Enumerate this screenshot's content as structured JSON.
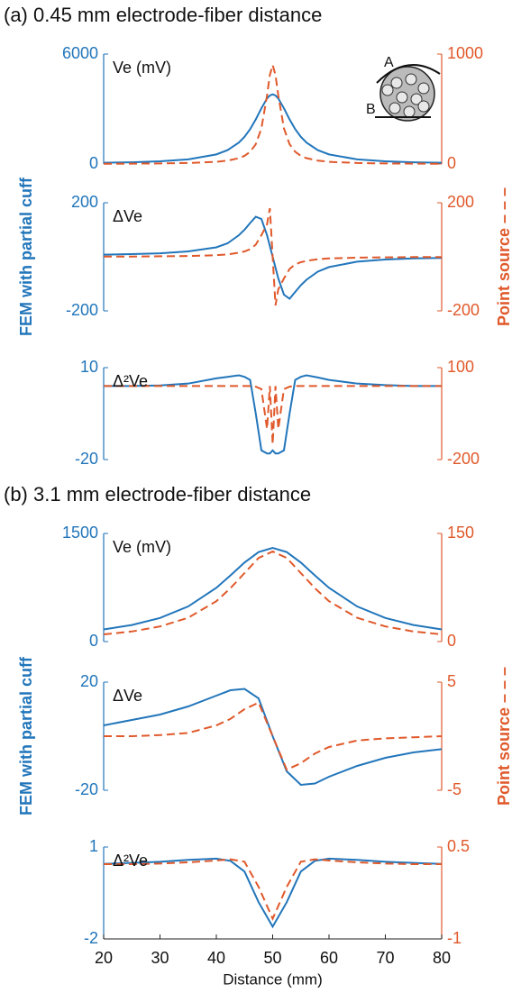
{
  "chart_data": [
    {
      "type": "line",
      "title": "(a) 0.45 mm electrode-fiber distance",
      "annotation": "Ve (mV)",
      "inset_labels": [
        "A",
        "B"
      ],
      "x": [
        20,
        25,
        30,
        35,
        40,
        42,
        44,
        45,
        46,
        47,
        48,
        49,
        49.5,
        50,
        50.5,
        51,
        52,
        53,
        54,
        55,
        56,
        58,
        60,
        65,
        70,
        75,
        80
      ],
      "xlim": [
        20,
        80
      ],
      "ylim": [
        0,
        6000
      ],
      "yticks": [
        0,
        6000
      ],
      "y2lim": [
        0,
        1000
      ],
      "y2ticks": [
        0,
        1000
      ],
      "series": [
        {
          "color": "#2276bb",
          "style": "solid",
          "axis": "y",
          "values": [
            66,
            95,
            146,
            252,
            524,
            760,
            1169,
            1483,
            1900,
            2432,
            3040,
            3576,
            3741,
            3800,
            3741,
            3576,
            3040,
            2432,
            1900,
            1483,
            1169,
            760,
            524,
            252,
            146,
            95,
            66
          ]
        },
        {
          "color": "#e0592b",
          "style": "dashed",
          "axis": "y2",
          "values": [
            2,
            3,
            5,
            9,
            20,
            31,
            53,
            74,
            111,
            180,
            324,
            623,
            810,
            900,
            810,
            623,
            324,
            180,
            111,
            74,
            53,
            31,
            20,
            9,
            5,
            3,
            2
          ]
        }
      ]
    },
    {
      "type": "line",
      "annotation": "ΔVe",
      "ylabel": "FEM with partial cuff",
      "y2label": "Point source – – –",
      "x": [
        20,
        25,
        30,
        35,
        40,
        42,
        44,
        45,
        46,
        47,
        48,
        49,
        49.5,
        50,
        50.5,
        51,
        52,
        53,
        54,
        55,
        56,
        58,
        60,
        65,
        70,
        75,
        80
      ],
      "xlim": [
        20,
        80
      ],
      "ylim": [
        -200,
        200
      ],
      "yticks": [
        -200,
        200
      ],
      "y2lim": [
        -200,
        200
      ],
      "y2ticks": [
        -200,
        200
      ],
      "series": [
        {
          "color": "#2276bb",
          "style": "solid",
          "axis": "y",
          "values": [
            8,
            10,
            13,
            20,
            35,
            50,
            80,
            100,
            125,
            148,
            140,
            80,
            40,
            0,
            -40,
            -80,
            -140,
            -155,
            -130,
            -105,
            -85,
            -55,
            -38,
            -18,
            -10,
            -6,
            -4
          ]
        },
        {
          "color": "#e0592b",
          "style": "dashed",
          "axis": "y2",
          "values": [
            1,
            1,
            2,
            3,
            6,
            9,
            15,
            20,
            28,
            45,
            80,
            120,
            180,
            0,
            -180,
            -120,
            -80,
            -45,
            -28,
            -20,
            -15,
            -9,
            -6,
            -3,
            -2,
            -1,
            -1
          ]
        }
      ]
    },
    {
      "type": "line",
      "annotation": "Δ²Ve",
      "x": [
        20,
        25,
        30,
        35,
        40,
        42,
        44,
        45,
        46,
        47,
        48,
        49,
        49.5,
        50,
        50.5,
        51,
        52,
        53,
        54,
        55,
        56,
        58,
        60,
        65,
        70,
        75,
        80
      ],
      "xlim": [
        20,
        80
      ],
      "ylim": [
        -20,
        10
      ],
      "yticks": [
        -20,
        10
      ],
      "y2lim": [
        -200,
        100
      ],
      "y2ticks": [
        -200,
        100
      ],
      "series": [
        {
          "color": "#2276bb",
          "style": "solid",
          "axis": "y",
          "values": [
            4,
            4,
            4.2,
            4.8,
            6.5,
            7,
            7.5,
            7,
            6,
            -5,
            -17,
            -18,
            -18,
            -17,
            -18,
            -18,
            -17,
            -5,
            6,
            7,
            7.5,
            6.8,
            6,
            4.8,
            4.3,
            4,
            4
          ]
        },
        {
          "color": "#e0592b",
          "style": "dashed",
          "axis": "y2",
          "values": [
            40,
            40,
            40,
            40,
            40,
            40,
            40,
            40,
            40,
            38,
            30,
            -100,
            40,
            -150,
            40,
            -100,
            30,
            38,
            40,
            40,
            40,
            40,
            40,
            40,
            40,
            40,
            40
          ]
        }
      ]
    },
    {
      "type": "line",
      "title": "(b) 3.1 mm electrode-fiber distance",
      "annotation": "Ve (mV)",
      "x": [
        20,
        25,
        30,
        35,
        40,
        42.5,
        45,
        47.5,
        50,
        52.5,
        55,
        57.5,
        60,
        65,
        70,
        75,
        80
      ],
      "xlim": [
        20,
        80
      ],
      "ylim": [
        0,
        1500
      ],
      "yticks": [
        0,
        1500
      ],
      "y2lim": [
        0,
        150
      ],
      "y2ticks": [
        0,
        150
      ],
      "series": [
        {
          "color": "#2276bb",
          "style": "solid",
          "axis": "y",
          "values": [
            169,
            230,
            327,
            487,
            746,
            917,
            1096,
            1242,
            1300,
            1242,
            1096,
            917,
            746,
            487,
            327,
            230,
            169
          ]
        },
        {
          "color": "#e0592b",
          "style": "dashed",
          "axis": "y2",
          "values": [
            10,
            14,
            21,
            33,
            56,
            74,
            95,
            116,
            125,
            116,
            95,
            74,
            56,
            33,
            21,
            14,
            10
          ]
        }
      ]
    },
    {
      "type": "line",
      "annotation": "ΔVe",
      "ylabel": "FEM with partial cuff",
      "y2label": "Point source – – –",
      "x": [
        20,
        25,
        30,
        35,
        40,
        42.5,
        45,
        47.5,
        50,
        52.5,
        55,
        57.5,
        60,
        65,
        70,
        75,
        80
      ],
      "xlim": [
        20,
        80
      ],
      "ylim": [
        -20,
        20
      ],
      "yticks": [
        -20,
        20
      ],
      "y2lim": [
        -5,
        5
      ],
      "y2ticks": [
        -5,
        5
      ],
      "series": [
        {
          "color": "#2276bb",
          "style": "solid",
          "axis": "y",
          "values": [
            4,
            6,
            8,
            11,
            15,
            17,
            17.5,
            14,
            0,
            -13,
            -18,
            -17.5,
            -15,
            -11,
            -8,
            -6,
            -4.8
          ]
        },
        {
          "color": "#e0592b",
          "style": "dashed",
          "axis": "y2",
          "values": [
            0,
            0,
            0.1,
            0.3,
            1,
            1.6,
            2.5,
            3.1,
            0,
            -3.1,
            -2.5,
            -1.6,
            -1,
            -0.4,
            -0.2,
            -0.1,
            0
          ]
        }
      ]
    },
    {
      "type": "line",
      "annotation": "Δ²Ve",
      "xlabel": "Distance (mm)",
      "x": [
        20,
        25,
        30,
        35,
        40,
        42.5,
        45,
        47.5,
        50,
        52.5,
        55,
        57.5,
        60,
        65,
        70,
        75,
        80
      ],
      "xlim": [
        20,
        80
      ],
      "xticks": [
        20,
        30,
        40,
        50,
        60,
        70,
        80
      ],
      "ylim": [
        -2,
        1
      ],
      "yticks": [
        -2,
        1
      ],
      "y2lim": [
        -1,
        0.5
      ],
      "y2ticks": [
        -1,
        0.5
      ],
      "series": [
        {
          "color": "#2276bb",
          "style": "solid",
          "axis": "y",
          "values": [
            0.45,
            0.48,
            0.52,
            0.58,
            0.62,
            0.55,
            0.2,
            -0.8,
            -1.6,
            -0.8,
            0.2,
            0.55,
            0.62,
            0.58,
            0.52,
            0.48,
            0.45
          ]
        },
        {
          "color": "#e0592b",
          "style": "dashed",
          "axis": "y2",
          "values": [
            0.22,
            0.22,
            0.23,
            0.25,
            0.28,
            0.3,
            0.26,
            -0.15,
            -0.67,
            -0.15,
            0.26,
            0.3,
            0.28,
            0.25,
            0.23,
            0.22,
            0.22
          ]
        }
      ]
    }
  ]
}
